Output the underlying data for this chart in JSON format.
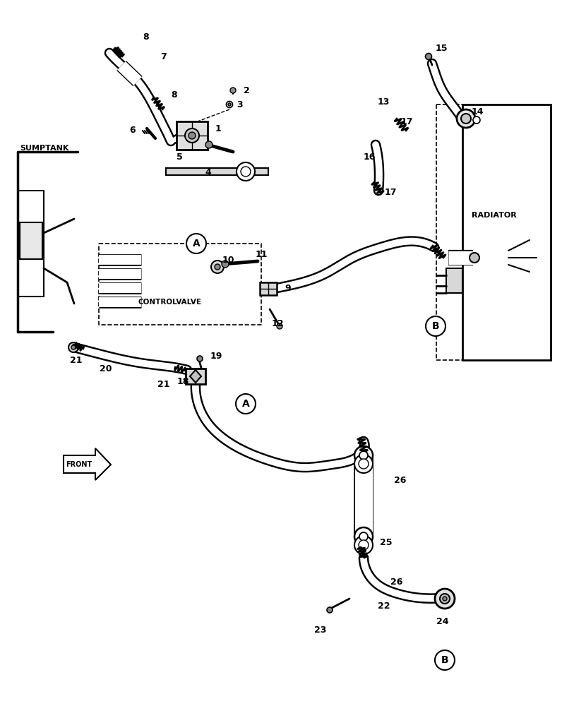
{
  "bg_color": "#ffffff",
  "line_color": "#000000",
  "figsize": [
    7.96,
    10.0
  ],
  "dpi": 100,
  "xlim": [
    0,
    796
  ],
  "ylim": [
    0,
    1000
  ]
}
